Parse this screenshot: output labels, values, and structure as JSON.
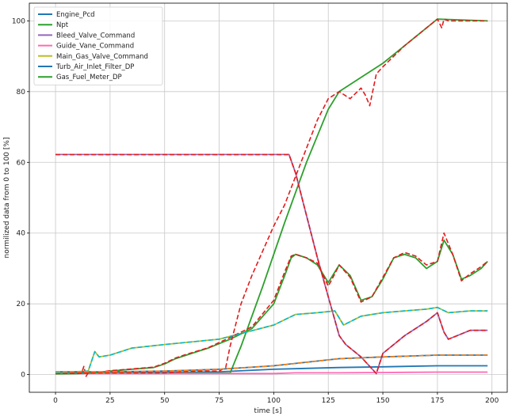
{
  "chart_data": {
    "type": "line",
    "title": "",
    "xlabel": "time [s]",
    "ylabel": "normilized data from 0 to 100 [%]",
    "xlim": [
      -12,
      207
    ],
    "ylim": [
      -5,
      105
    ],
    "x_ticks": [
      0,
      25,
      50,
      75,
      100,
      125,
      150,
      175,
      200
    ],
    "y_ticks": [
      0,
      20,
      40,
      60,
      80,
      100
    ],
    "grid": true,
    "legend_position": "top-left",
    "series": [
      {
        "name": "Engine_Pcd",
        "color": "#1f77b4",
        "style": "solid",
        "x": [
          0,
          25,
          50,
          75,
          100,
          130,
          150,
          175,
          198
        ],
        "y": [
          0.6,
          0.6,
          0.6,
          0.8,
          1.5,
          2.0,
          2.2,
          2.5,
          2.5
        ]
      },
      {
        "name": "Npt",
        "color": "#2ca02c",
        "style": "solid",
        "x": [
          0,
          80,
          85,
          95,
          105,
          115,
          125,
          130,
          140,
          150,
          160,
          175,
          198
        ],
        "y": [
          0.4,
          0.4,
          8,
          25,
          43,
          60,
          75,
          80,
          84,
          88,
          93,
          100.5,
          100
        ]
      },
      {
        "name": "Bleed_Valve_Command",
        "color": "#9467bd",
        "style": "solid",
        "x": [
          0,
          50,
          100,
          107,
          110,
          115,
          120,
          125,
          130,
          133,
          140,
          147,
          150,
          160,
          170,
          175,
          178,
          180,
          190,
          198
        ],
        "y": [
          62.2,
          62.2,
          62.2,
          62.2,
          57,
          45,
          33,
          22,
          11,
          8.5,
          5,
          0.3,
          6,
          11,
          15,
          17.5,
          12,
          10,
          12.5,
          12.5
        ]
      },
      {
        "name": "Guide_Vane_Command",
        "color": "#ff69b4",
        "style": "solid",
        "x": [
          0,
          50,
          100,
          110,
          130,
          150,
          175,
          198
        ],
        "y": [
          0.3,
          0.3,
          0.3,
          0.5,
          0.5,
          0.6,
          0.7,
          0.7
        ]
      },
      {
        "name": "Main_Gas_Valve_Command",
        "color": "#bcbd22",
        "style": "solid",
        "x": [
          0,
          15,
          18,
          20,
          25,
          35,
          50,
          75,
          100,
          110,
          120,
          128,
          132,
          140,
          150,
          160,
          170,
          175,
          180,
          190,
          198
        ],
        "y": [
          0.5,
          1,
          6.5,
          5,
          5.5,
          7.5,
          8.5,
          10,
          14,
          17,
          17.5,
          18,
          14,
          16.5,
          17.5,
          18,
          18.5,
          19,
          17.5,
          18,
          18
        ]
      },
      {
        "name": "Turb_Air_Inlet_Filter_DP",
        "color": "#1f77b4",
        "style": "solid",
        "x": [
          0,
          25,
          50,
          75,
          100,
          130,
          150,
          175,
          198
        ],
        "y": [
          0.8,
          0.8,
          1,
          1.5,
          2.5,
          4.5,
          5,
          5.5,
          5.5
        ]
      },
      {
        "name": "Gas_Fuel_Meter_DP",
        "color": "#2ca02c",
        "style": "solid",
        "x": [
          0,
          10,
          20,
          25,
          35,
          45,
          50,
          55,
          60,
          70,
          80,
          90,
          100,
          105,
          108,
          110,
          115,
          120,
          125,
          128,
          130,
          135,
          140,
          145,
          150,
          155,
          160,
          165,
          170,
          175,
          178,
          182,
          186,
          190,
          195,
          198
        ],
        "y": [
          0.2,
          0.3,
          0.6,
          1,
          1.5,
          2,
          3,
          4.5,
          5.5,
          7.5,
          10,
          13,
          20,
          28,
          33,
          34,
          33,
          31,
          26,
          29,
          31,
          28,
          21,
          22,
          27,
          33,
          34,
          33,
          30,
          32,
          38,
          34,
          27,
          28,
          30,
          32
        ]
      },
      {
        "name": "",
        "color": "#e41a1c",
        "style": "dashed",
        "x": [
          0,
          12,
          13,
          14,
          15,
          20,
          30,
          50,
          65,
          75,
          78,
          80,
          85,
          90,
          95,
          100,
          105,
          110,
          115,
          120,
          125,
          130,
          135,
          140,
          142,
          144,
          147,
          150,
          160,
          170,
          175,
          177,
          178,
          180,
          190,
          198
        ],
        "y": [
          0.5,
          0.5,
          2.3,
          -0.5,
          0.5,
          0.5,
          0.5,
          0.5,
          1,
          1,
          2,
          8,
          20,
          28,
          35,
          42,
          48,
          56,
          64,
          72,
          78,
          80,
          78,
          81,
          79,
          76,
          85,
          87,
          93,
          98,
          100.5,
          98,
          100.5,
          100,
          100,
          100
        ]
      },
      {
        "name": "",
        "color": "#e41a1c",
        "style": "dashed",
        "x": [
          0,
          10,
          20,
          25,
          35,
          45,
          50,
          55,
          60,
          70,
          80,
          90,
          100,
          105,
          108,
          110,
          115,
          120,
          125,
          128,
          130,
          135,
          140,
          145,
          150,
          155,
          160,
          165,
          170,
          175,
          178,
          182,
          186,
          190,
          195,
          198
        ],
        "y": [
          0.3,
          0.4,
          0.7,
          1.1,
          1.6,
          2.1,
          3.2,
          4.7,
          5.7,
          7.6,
          10.5,
          13.5,
          21,
          29,
          33.5,
          34,
          33,
          31.5,
          25,
          28.5,
          31,
          27.5,
          20.5,
          22,
          27.5,
          33,
          34.5,
          33.5,
          31,
          32,
          40,
          34,
          26.5,
          28.5,
          30.5,
          32
        ]
      },
      {
        "name": "",
        "color": "#e41a1c",
        "style": "dashed",
        "x": [
          0,
          50,
          100,
          107,
          110,
          115,
          120,
          125,
          130,
          133,
          140,
          147,
          150,
          160,
          170,
          175,
          178,
          180,
          190,
          198
        ],
        "y": [
          62.2,
          62.2,
          62.2,
          62.2,
          57,
          45,
          33,
          22,
          11,
          8.5,
          5,
          0.3,
          6,
          11,
          15,
          17.5,
          12,
          10,
          12.5,
          12.5
        ]
      },
      {
        "name": "",
        "color": "#00bcd4",
        "style": "dashed",
        "x": [
          0,
          15,
          18,
          20,
          25,
          35,
          50,
          75,
          100,
          110,
          120,
          128,
          132,
          140,
          150,
          160,
          170,
          175,
          180,
          190,
          198
        ],
        "y": [
          0.5,
          1,
          6.5,
          5,
          5.5,
          7.5,
          8.5,
          10,
          14,
          17,
          17.5,
          18,
          14,
          16.5,
          17.5,
          18,
          18.5,
          19,
          17.5,
          18,
          18
        ]
      },
      {
        "name": "",
        "color": "#ff7f0e",
        "style": "dashed",
        "x": [
          0,
          25,
          50,
          75,
          100,
          130,
          150,
          175,
          198
        ],
        "y": [
          0.8,
          0.8,
          1,
          1.5,
          2.5,
          4.5,
          5,
          5.5,
          5.5
        ]
      }
    ]
  }
}
